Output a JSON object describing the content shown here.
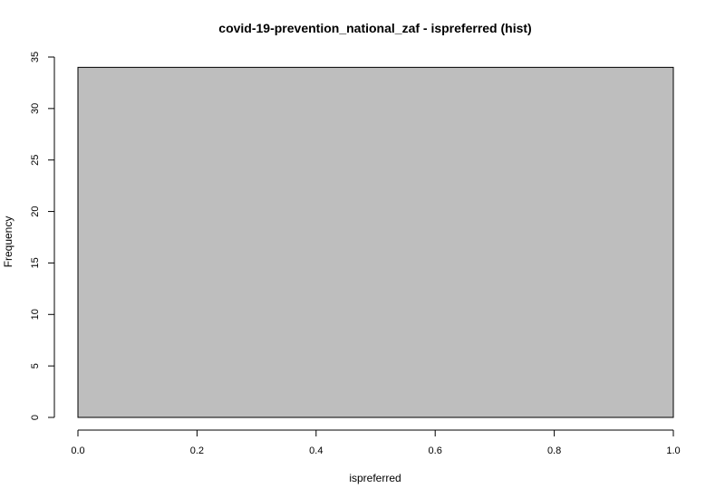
{
  "chart_data": {
    "type": "bar",
    "title": "covid-19-prevention_national_zaf - ispreferred (hist)",
    "xlabel": "ispreferred",
    "ylabel": "Frequency",
    "xlim": [
      0,
      1
    ],
    "ylim": [
      0,
      35
    ],
    "x_ticks": [
      "0.0",
      "0.2",
      "0.4",
      "0.6",
      "0.8",
      "1.0"
    ],
    "x_tick_values": [
      0,
      0.2,
      0.4,
      0.6,
      0.8,
      1.0
    ],
    "y_ticks": [
      "0",
      "5",
      "10",
      "15",
      "20",
      "25",
      "30",
      "35"
    ],
    "y_tick_values": [
      0,
      5,
      10,
      15,
      20,
      25,
      30,
      35
    ],
    "bins": [
      {
        "start": 0,
        "end": 1,
        "count": 34
      }
    ],
    "bar_fill": "#bebebe",
    "bar_stroke": "#000000",
    "grid": false,
    "legend": "none"
  }
}
